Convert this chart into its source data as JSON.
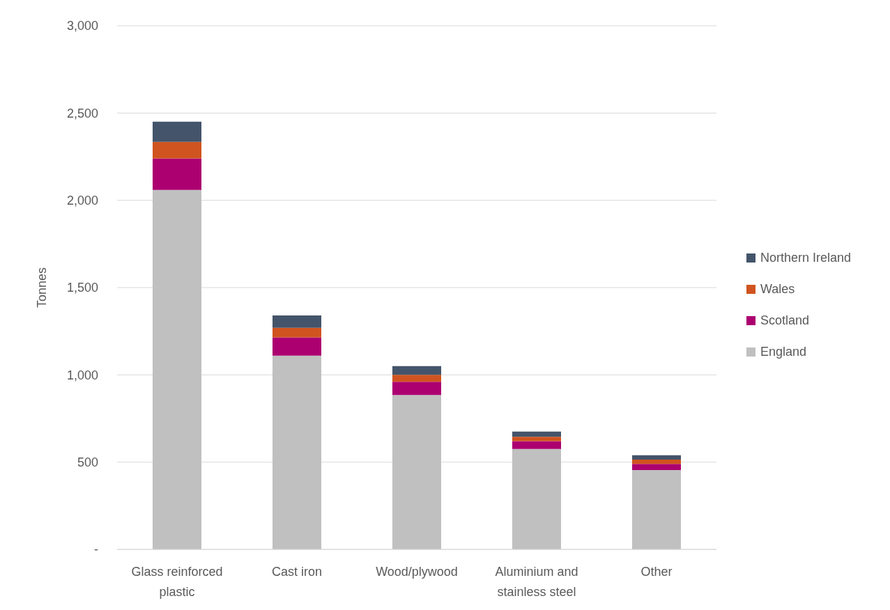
{
  "chart_data": {
    "type": "bar",
    "stacked": true,
    "ylabel": "Tonnes",
    "categories": [
      "Glass reinforced plastic",
      "Cast iron",
      "Wood/plywood",
      "Aluminium and stainless steel",
      "Other"
    ],
    "series": [
      {
        "name": "England",
        "color": "#c0c0c0",
        "values": [
          2060,
          1110,
          885,
          575,
          455
        ]
      },
      {
        "name": "Scotland",
        "color": "#ac0070",
        "values": [
          180,
          105,
          75,
          45,
          35
        ]
      },
      {
        "name": "Wales",
        "color": "#d0541f",
        "values": [
          95,
          55,
          40,
          25,
          25
        ]
      },
      {
        "name": "Northern Ireland",
        "color": "#44546a",
        "values": [
          115,
          70,
          50,
          30,
          25
        ]
      }
    ],
    "ylim": [
      0,
      3000
    ],
    "yticks": [
      {
        "value": 0,
        "label": "-"
      },
      500,
      {
        "value": 1000,
        "label": "1,000"
      },
      {
        "value": 1500,
        "label": "1,500"
      },
      {
        "value": 2000,
        "label": "2,000"
      },
      {
        "value": 2500,
        "label": "2,500"
      },
      {
        "value": 3000,
        "label": "3,000"
      }
    ],
    "grid": "y",
    "legend": "right"
  }
}
